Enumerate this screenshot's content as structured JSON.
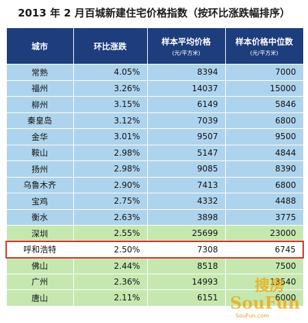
{
  "title": "2013 年 2 月百城新建住宅价格指数（按环比涨跌幅排序）",
  "headers": {
    "city": "城市",
    "mom_change": "环比涨跌",
    "avg_price": "样本平均价格",
    "avg_price_unit": "(元/平方米)",
    "median_price": "样本价格中位数",
    "median_price_unit": "(元/平方米)"
  },
  "rows": [
    {
      "city": "常熟",
      "mom": "4.05%",
      "avg": "8394",
      "median": "7000",
      "style": "blue"
    },
    {
      "city": "福州",
      "mom": "3.26%",
      "avg": "14037",
      "median": "15000",
      "style": "blue"
    },
    {
      "city": "柳州",
      "mom": "3.15%",
      "avg": "6149",
      "median": "5846",
      "style": "blue"
    },
    {
      "city": "秦皇岛",
      "mom": "3.12%",
      "avg": "7039",
      "median": "6800",
      "style": "blue"
    },
    {
      "city": "金华",
      "mom": "3.01%",
      "avg": "9507",
      "median": "9500",
      "style": "blue"
    },
    {
      "city": "鞍山",
      "mom": "2.98%",
      "avg": "5147",
      "median": "4844",
      "style": "blue"
    },
    {
      "city": "扬州",
      "mom": "2.98%",
      "avg": "9085",
      "median": "8390",
      "style": "blue"
    },
    {
      "city": "乌鲁木齐",
      "mom": "2.90%",
      "avg": "7413",
      "median": "6800",
      "style": "blue"
    },
    {
      "city": "宝鸡",
      "mom": "2.75%",
      "avg": "4332",
      "median": "4488",
      "style": "blue"
    },
    {
      "city": "衡水",
      "mom": "2.63%",
      "avg": "3898",
      "median": "3775",
      "style": "blue"
    },
    {
      "city": "深圳",
      "mom": "2.55%",
      "avg": "25699",
      "median": "23000",
      "style": "green"
    },
    {
      "city": "呼和浩特",
      "mom": "2.50%",
      "avg": "7308",
      "median": "6745",
      "style": "hl"
    },
    {
      "city": "佛山",
      "mom": "2.44%",
      "avg": "8518",
      "median": "7500",
      "style": "green"
    },
    {
      "city": "广州",
      "mom": "2.36%",
      "avg": "14993",
      "median": "13540",
      "style": "green"
    },
    {
      "city": "唐山",
      "mom": "2.11%",
      "avg": "6151",
      "median": "6000",
      "style": "green"
    }
  ],
  "watermark": {
    "top": "搜房",
    "bottom": "SouFun",
    "url": "SouFun.com"
  },
  "colors": {
    "header": "#1e3d7d",
    "blue_row": "#aed4ed",
    "green_row": "#c6e8b0",
    "highlight_border": "#d0302c"
  }
}
